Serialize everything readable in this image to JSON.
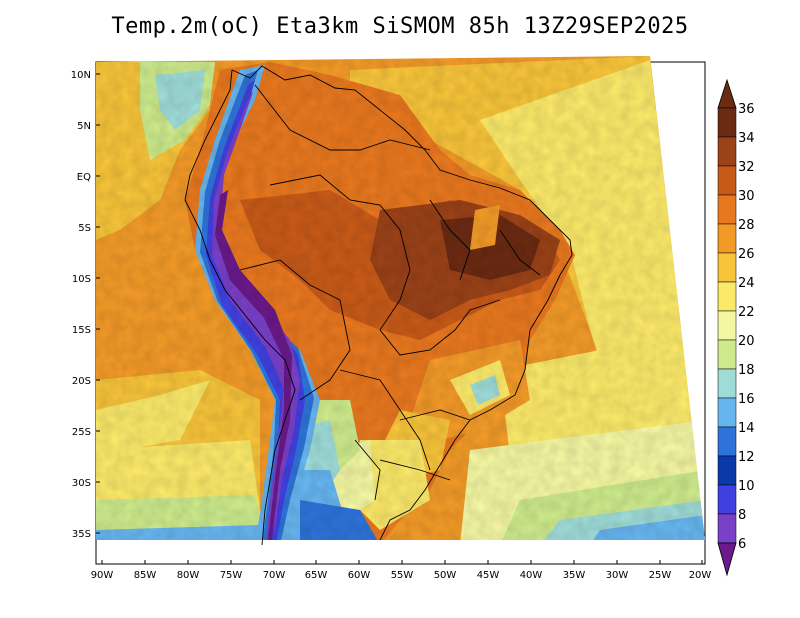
{
  "title": "Temp.2m(oC) Eta3km SiSMOM 85h 13Z29SEP2025",
  "lat_labels": [
    "10N",
    "5N",
    "EQ",
    "5S",
    "10S",
    "15S",
    "20S",
    "25S",
    "30S",
    "35S"
  ],
  "lon_labels": [
    "90W",
    "85W",
    "80W",
    "75W",
    "70W",
    "65W",
    "60W",
    "55W",
    "50W",
    "45W",
    "40W",
    "35W",
    "30W",
    "25W",
    "20W"
  ],
  "colorbar": {
    "labels": [
      "36",
      "34",
      "32",
      "30",
      "28",
      "26",
      "24",
      "22",
      "20",
      "18",
      "16",
      "14",
      "12",
      "10",
      "8",
      "6"
    ],
    "colors": [
      "#6b2a12",
      "#9a4218",
      "#c85a18",
      "#e8781f",
      "#f29a28",
      "#f7c43a",
      "#fbe96a",
      "#f4f7a2",
      "#cdea8c",
      "#9fdcd8",
      "#66b5ef",
      "#2e73d9",
      "#0a3aa8",
      "#4040e0",
      "#7a40c8",
      "#6a1a8a"
    ]
  }
}
